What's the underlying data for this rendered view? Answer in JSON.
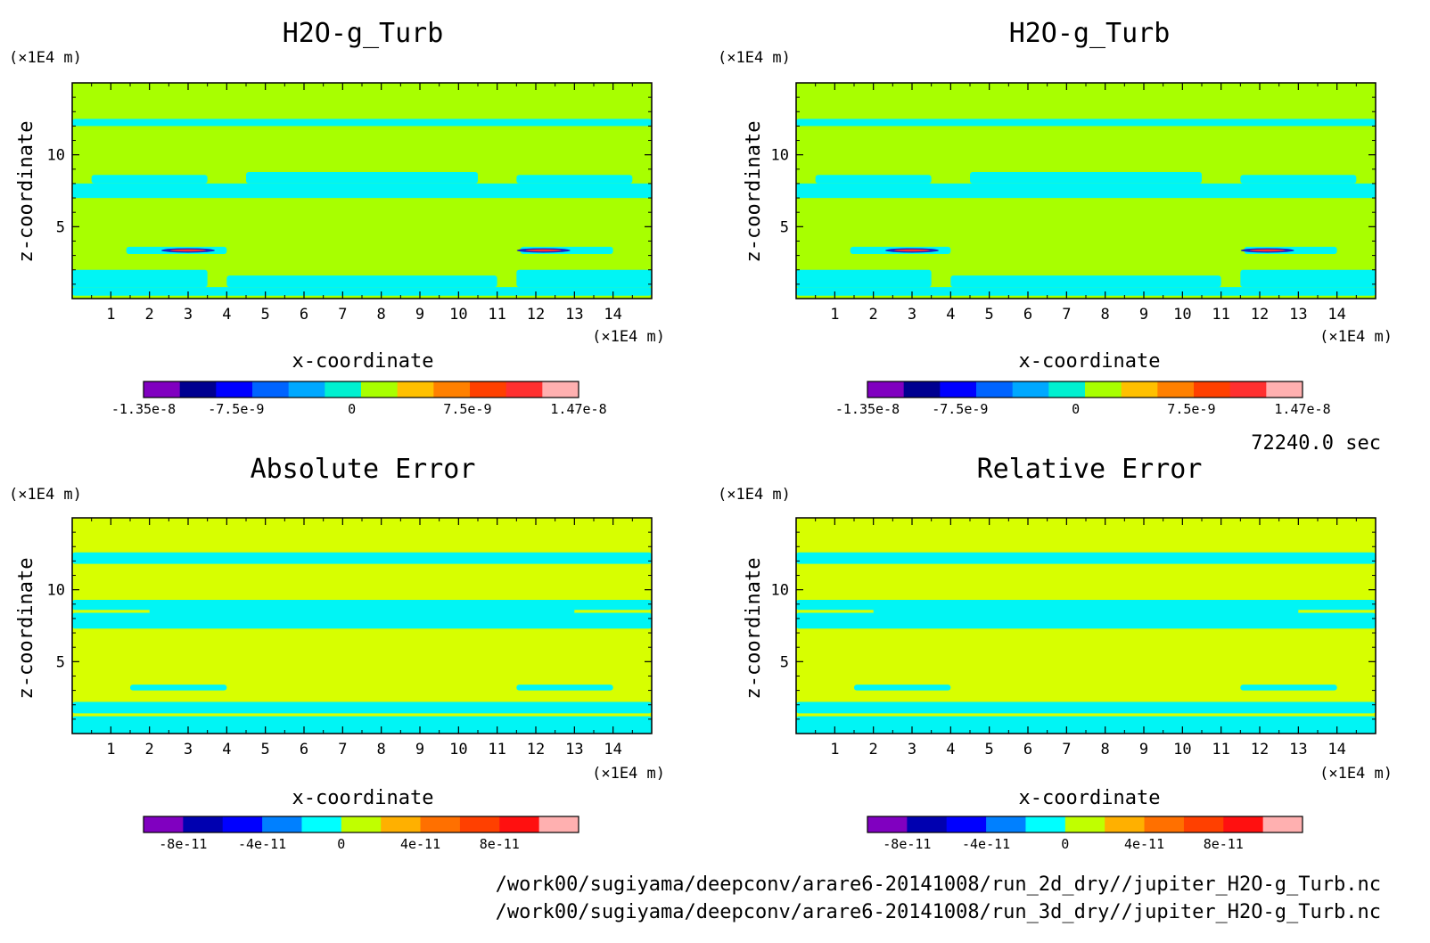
{
  "time_label": "72240.0 sec",
  "paths": [
    "/work00/sugiyama/deepconv/arare6-20141008/run_2d_dry//jupiter_H2O-g_Turb.nc",
    "/work00/sugiyama/deepconv/arare6-20141008/run_3d_dry//jupiter_H2O-g_Turb.nc"
  ],
  "colors": {
    "background": "#a8ff00",
    "background_err": "#d7ff00",
    "anomaly": "#00f5f5"
  },
  "chart_data": [
    {
      "type": "heatmap",
      "title": "H2O-g_Turb",
      "xlabel": "x-coordinate",
      "ylabel": "z-coordinate",
      "x_unit": "(×1E4 m)",
      "y_unit": "(×1E4 m)",
      "xlim": [
        0,
        15
      ],
      "ylim": [
        0,
        15
      ],
      "x_ticks": [
        1,
        2,
        3,
        4,
        5,
        6,
        7,
        8,
        9,
        10,
        11,
        12,
        13,
        14
      ],
      "y_ticks": [
        5,
        10
      ],
      "field_color": "#a8ff00",
      "colorbar": {
        "colors": [
          "#8000c0",
          "#000090",
          "#0000ff",
          "#0064ff",
          "#00a8ff",
          "#00f0d0",
          "#a8ff00",
          "#ffc000",
          "#ff8000",
          "#ff4000",
          "#ff3030",
          "#ffb0b0"
        ],
        "tick_labels": [
          "-1.35e-8",
          "-7.5e-9",
          "0",
          "7.5e-9",
          "1.47e-8"
        ],
        "tick_values": [
          -1.35e-08,
          -7.5e-09,
          0,
          7.5e-09,
          1.47e-08
        ],
        "range": [
          -1.35e-08,
          1.47e-08
        ]
      }
    },
    {
      "type": "heatmap",
      "title": "H2O-g_Turb",
      "xlabel": "x-coordinate",
      "ylabel": "z-coordinate",
      "x_unit": "(×1E4 m)",
      "y_unit": "(×1E4 m)",
      "xlim": [
        0,
        15
      ],
      "ylim": [
        0,
        15
      ],
      "x_ticks": [
        1,
        2,
        3,
        4,
        5,
        6,
        7,
        8,
        9,
        10,
        11,
        12,
        13,
        14
      ],
      "y_ticks": [
        5,
        10
      ],
      "field_color": "#a8ff00",
      "colorbar": {
        "colors": [
          "#8000c0",
          "#000090",
          "#0000ff",
          "#0064ff",
          "#00a8ff",
          "#00f0d0",
          "#a8ff00",
          "#ffc000",
          "#ff8000",
          "#ff4000",
          "#ff3030",
          "#ffb0b0"
        ],
        "tick_labels": [
          "-1.35e-8",
          "-7.5e-9",
          "0",
          "7.5e-9",
          "1.47e-8"
        ],
        "tick_values": [
          -1.35e-08,
          -7.5e-09,
          0,
          7.5e-09,
          1.47e-08
        ],
        "range": [
          -1.35e-08,
          1.47e-08
        ]
      }
    },
    {
      "type": "heatmap",
      "title": "Absolute Error",
      "xlabel": "x-coordinate",
      "ylabel": "z-coordinate",
      "x_unit": "(×1E4 m)",
      "y_unit": "(×1E4 m)",
      "xlim": [
        0,
        15
      ],
      "ylim": [
        0,
        15
      ],
      "x_ticks": [
        1,
        2,
        3,
        4,
        5,
        6,
        7,
        8,
        9,
        10,
        11,
        12,
        13,
        14
      ],
      "y_ticks": [
        5,
        10
      ],
      "field_color": "#d7ff00",
      "colorbar": {
        "colors": [
          "#8000c0",
          "#0000b0",
          "#0000ff",
          "#0080ff",
          "#00ffff",
          "#c0ff00",
          "#ffb000",
          "#ff7000",
          "#ff4000",
          "#ff1010",
          "#ffb0b0"
        ],
        "tick_labels": [
          "-8e-11",
          "-4e-11",
          "0",
          "4e-11",
          "8e-11"
        ],
        "tick_values": [
          -8e-11,
          -4e-11,
          0,
          4e-11,
          8e-11
        ],
        "range": [
          -1e-10,
          1.2e-10
        ]
      }
    },
    {
      "type": "heatmap",
      "title": "Relative Error",
      "xlabel": "x-coordinate",
      "ylabel": "z-coordinate",
      "x_unit": "(×1E4 m)",
      "y_unit": "(×1E4 m)",
      "xlim": [
        0,
        15
      ],
      "ylim": [
        0,
        15
      ],
      "x_ticks": [
        1,
        2,
        3,
        4,
        5,
        6,
        7,
        8,
        9,
        10,
        11,
        12,
        13,
        14
      ],
      "y_ticks": [
        5,
        10
      ],
      "field_color": "#d7ff00",
      "colorbar": {
        "colors": [
          "#8000c0",
          "#0000b0",
          "#0000ff",
          "#0080ff",
          "#00ffff",
          "#c0ff00",
          "#ffb000",
          "#ff7000",
          "#ff4000",
          "#ff1010",
          "#ffb0b0"
        ],
        "tick_labels": [
          "-8e-11",
          "-4e-11",
          "0",
          "4e-11",
          "8e-11"
        ],
        "tick_values": [
          -8e-11,
          -4e-11,
          0,
          4e-11,
          8e-11
        ],
        "range": [
          -1e-10,
          1.2e-10
        ]
      }
    }
  ]
}
